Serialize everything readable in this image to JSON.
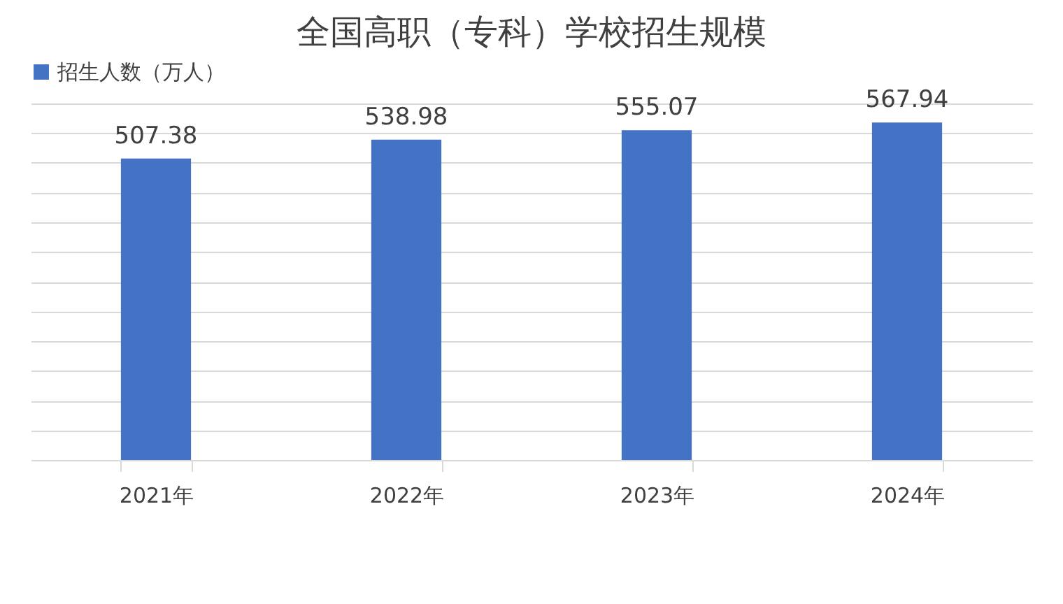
{
  "chart_data": {
    "type": "bar",
    "title": "全国高职（专科）学校招生规模",
    "categories": [
      "2021年",
      "2022年",
      "2023年",
      "2024年"
    ],
    "series": [
      {
        "name": "招生人数（万人）",
        "color": "#4472c4",
        "values": [
          507.38,
          538.98,
          555.07,
          567.94
        ]
      }
    ],
    "grid": "y",
    "legend": "top",
    "tick_labels": "x",
    "data_labels": true
  }
}
